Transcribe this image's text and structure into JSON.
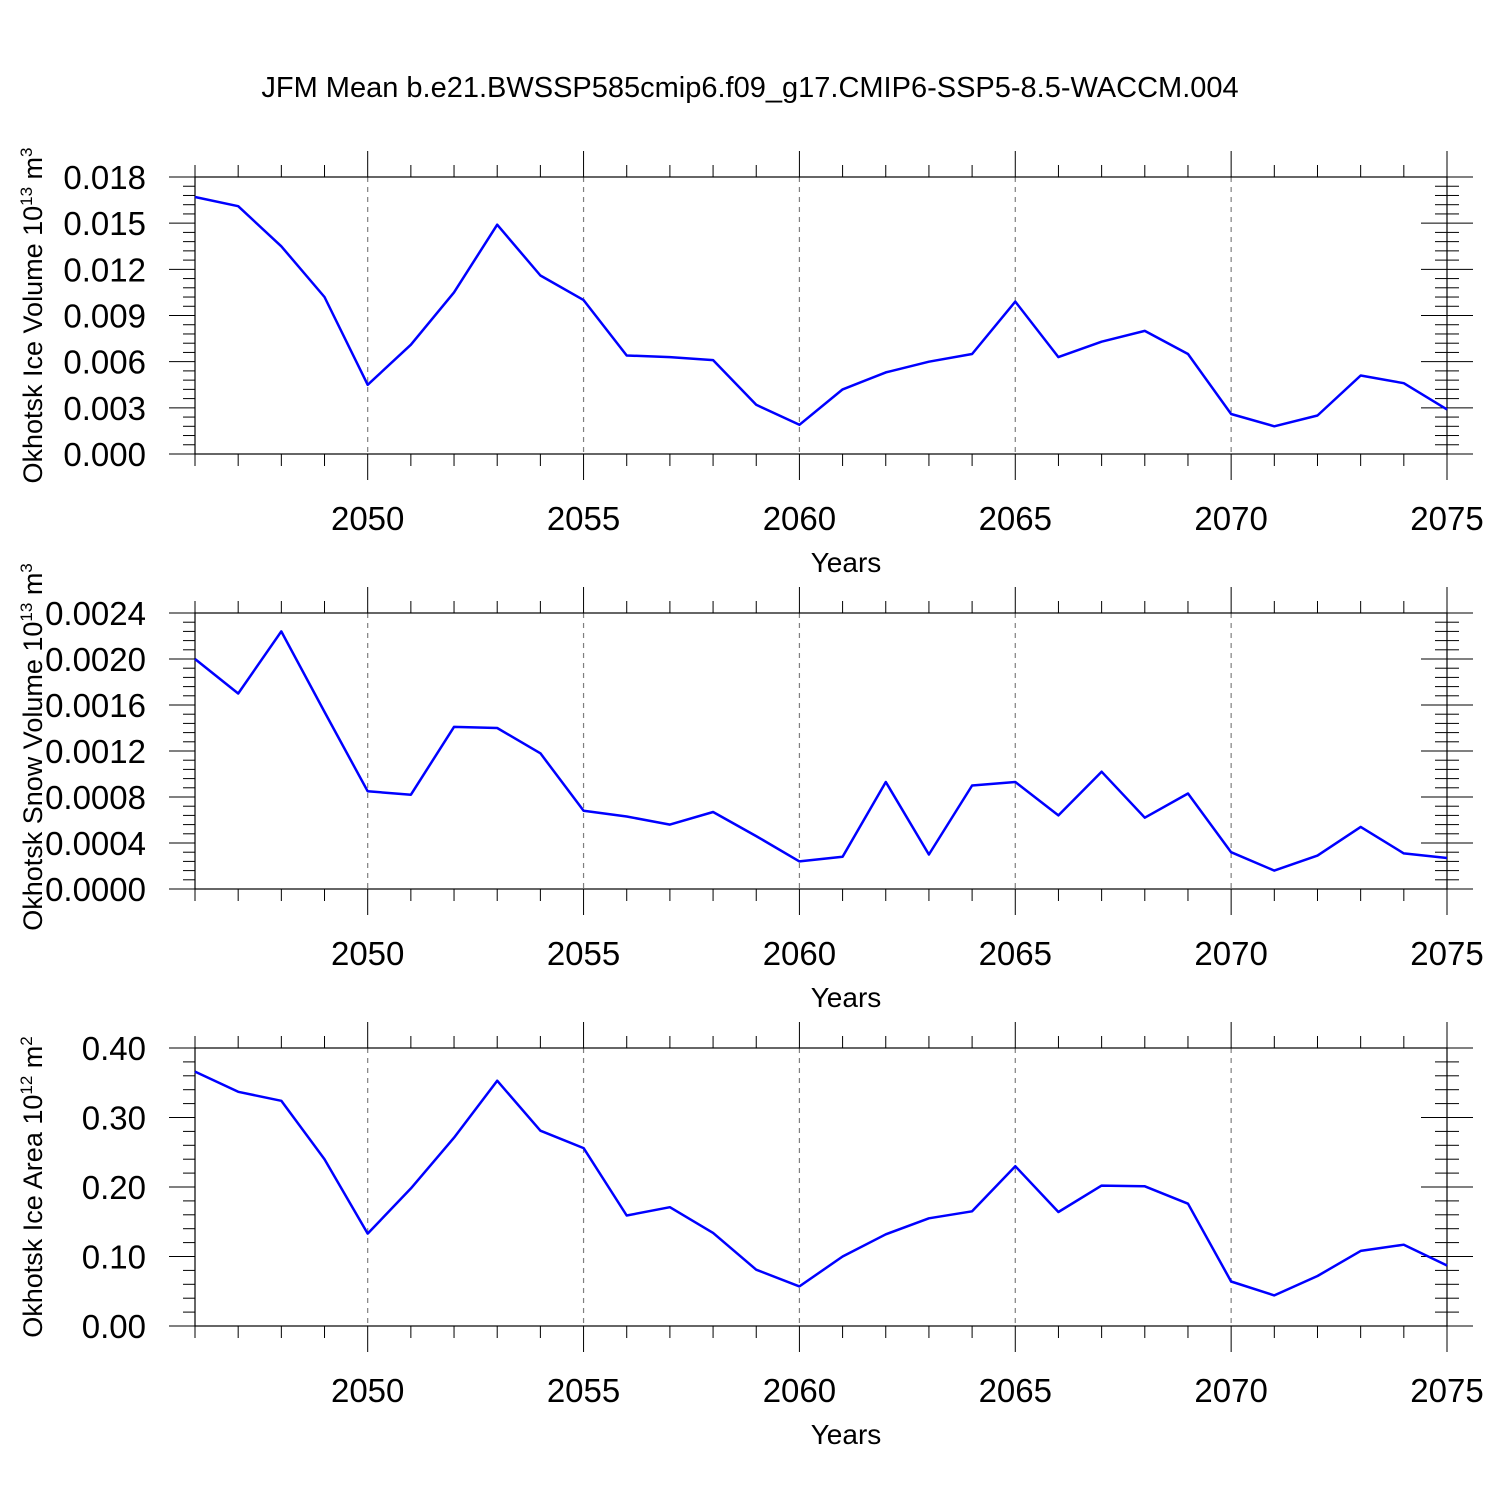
{
  "title": "JFM Mean b.e21.BWSSP585cmip6.f09_g17.CMIP6-SSP5-8.5-WACCM.004",
  "colors": {
    "line": "#0000ff",
    "axis": "#000000",
    "grid": "#7f7f7f"
  },
  "chart_data": [
    {
      "type": "line",
      "ylabel_main": "Okhotsk Ice Volume 10",
      "ylabel_exp": "13",
      "ylabel_unit": " m",
      "ylabel_unit_exp": "3",
      "xlabel": "Years",
      "xlim": [
        2046,
        2075
      ],
      "ylim": [
        0,
        0.018
      ],
      "yticks": [
        "0.000",
        "0.003",
        "0.006",
        "0.009",
        "0.012",
        "0.015",
        "0.018"
      ],
      "xticks": [
        "2050",
        "2055",
        "2060",
        "2065",
        "2070",
        "2075"
      ],
      "x": [
        2046,
        2047,
        2048,
        2049,
        2050,
        2051,
        2052,
        2053,
        2054,
        2055,
        2056,
        2057,
        2058,
        2059,
        2060,
        2061,
        2062,
        2063,
        2064,
        2065,
        2066,
        2067,
        2068,
        2069,
        2070,
        2071,
        2072,
        2073,
        2074,
        2075
      ],
      "values": [
        0.0167,
        0.0161,
        0.0135,
        0.0102,
        0.0045,
        0.0071,
        0.0105,
        0.0149,
        0.0116,
        0.01,
        0.0064,
        0.0063,
        0.0061,
        0.0032,
        0.0019,
        0.0042,
        0.0053,
        0.006,
        0.0065,
        0.0099,
        0.0063,
        0.0073,
        0.008,
        0.0065,
        0.0026,
        0.0018,
        0.0025,
        0.0051,
        0.0046,
        0.0029
      ]
    },
    {
      "type": "line",
      "ylabel_main": "Okhotsk Snow Volume 10",
      "ylabel_exp": "13",
      "ylabel_unit": " m",
      "ylabel_unit_exp": "3",
      "xlabel": "Years",
      "xlim": [
        2046,
        2075
      ],
      "ylim": [
        0,
        0.0024
      ],
      "yticks": [
        "0.0000",
        "0.0004",
        "0.0008",
        "0.0012",
        "0.0016",
        "0.0020",
        "0.0024"
      ],
      "xticks": [
        "2050",
        "2055",
        "2060",
        "2065",
        "2070",
        "2075"
      ],
      "x": [
        2046,
        2047,
        2048,
        2049,
        2050,
        2051,
        2052,
        2053,
        2054,
        2055,
        2056,
        2057,
        2058,
        2059,
        2060,
        2061,
        2062,
        2063,
        2064,
        2065,
        2066,
        2067,
        2068,
        2069,
        2070,
        2071,
        2072,
        2073,
        2074,
        2075
      ],
      "values": [
        0.002,
        0.0017,
        0.00224,
        0.00154,
        0.00085,
        0.00082,
        0.00141,
        0.0014,
        0.00118,
        0.00068,
        0.00063,
        0.00056,
        0.00067,
        0.00046,
        0.00024,
        0.00028,
        0.00093,
        0.0003,
        0.0009,
        0.00093,
        0.00064,
        0.00102,
        0.00062,
        0.00083,
        0.00032,
        0.00016,
        0.00029,
        0.00054,
        0.00031,
        0.00027
      ]
    },
    {
      "type": "line",
      "ylabel_main": "Okhotsk Ice Area 10",
      "ylabel_exp": "12",
      "ylabel_unit": " m",
      "ylabel_unit_exp": "2",
      "xlabel": "Years",
      "xlim": [
        2046,
        2075
      ],
      "ylim": [
        0,
        0.4
      ],
      "yticks": [
        "0.00",
        "0.10",
        "0.20",
        "0.30",
        "0.40"
      ],
      "xticks": [
        "2050",
        "2055",
        "2060",
        "2065",
        "2070",
        "2075"
      ],
      "x": [
        2046,
        2047,
        2048,
        2049,
        2050,
        2051,
        2052,
        2053,
        2054,
        2055,
        2056,
        2057,
        2058,
        2059,
        2060,
        2061,
        2062,
        2063,
        2064,
        2065,
        2066,
        2067,
        2068,
        2069,
        2070,
        2071,
        2072,
        2073,
        2074,
        2075
      ],
      "values": [
        0.366,
        0.337,
        0.324,
        0.24,
        0.133,
        0.198,
        0.271,
        0.353,
        0.281,
        0.256,
        0.159,
        0.171,
        0.134,
        0.081,
        0.057,
        0.1,
        0.132,
        0.155,
        0.165,
        0.23,
        0.164,
        0.202,
        0.201,
        0.176,
        0.064,
        0.044,
        0.072,
        0.108,
        0.117,
        0.087
      ]
    }
  ]
}
